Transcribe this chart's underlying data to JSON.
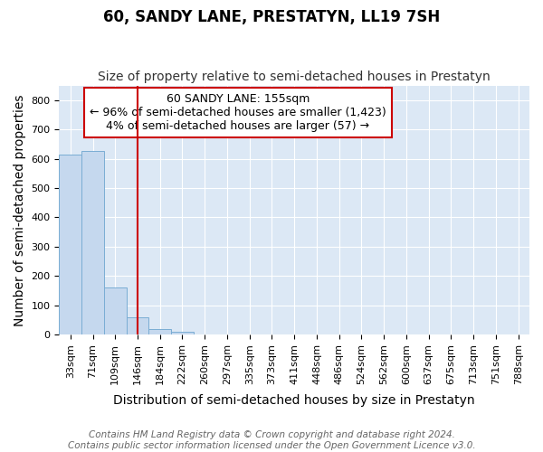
{
  "title": "60, SANDY LANE, PRESTATYN, LL19 7SH",
  "subtitle": "Size of property relative to semi-detached houses in Prestatyn",
  "xlabel": "Distribution of semi-detached houses by size in Prestatyn",
  "ylabel": "Number of semi-detached properties",
  "bar_labels": [
    "33sqm",
    "71sqm",
    "109sqm",
    "146sqm",
    "184sqm",
    "222sqm",
    "260sqm",
    "297sqm",
    "335sqm",
    "373sqm",
    "411sqm",
    "448sqm",
    "486sqm",
    "524sqm",
    "562sqm",
    "600sqm",
    "637sqm",
    "675sqm",
    "713sqm",
    "751sqm",
    "788sqm"
  ],
  "bar_values": [
    615,
    625,
    160,
    60,
    18,
    8,
    0,
    0,
    0,
    0,
    0,
    0,
    0,
    0,
    0,
    0,
    0,
    0,
    0,
    0,
    0
  ],
  "bar_color": "#c5d8ee",
  "bar_edge_color": "#7aadd4",
  "property_line_x": 3.0,
  "property_line_color": "#cc0000",
  "annotation_line1": "60 SANDY LANE: 155sqm",
  "annotation_line2": "← 96% of semi-detached houses are smaller (1,423)",
  "annotation_line3": "4% of semi-detached houses are larger (57) →",
  "annotation_box_color": "#ffffff",
  "annotation_box_edge_color": "#cc0000",
  "ylim": [
    0,
    850
  ],
  "yticks": [
    0,
    100,
    200,
    300,
    400,
    500,
    600,
    700,
    800
  ],
  "footnote1": "Contains HM Land Registry data © Crown copyright and database right 2024.",
  "footnote2": "Contains public sector information licensed under the Open Government Licence v3.0.",
  "figure_bg": "#ffffff",
  "plot_background": "#dce8f5",
  "grid_color": "#ffffff",
  "title_fontsize": 12,
  "subtitle_fontsize": 10,
  "axis_label_fontsize": 10,
  "tick_fontsize": 8,
  "footnote_fontsize": 7.5
}
